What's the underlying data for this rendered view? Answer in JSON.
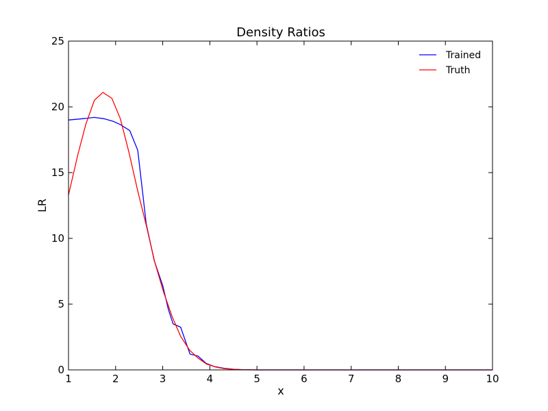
{
  "chart_data": {
    "type": "line",
    "title": "Density Ratios",
    "xlabel": "x",
    "ylabel": "LR",
    "xlim": [
      1,
      10
    ],
    "ylim": [
      0,
      25
    ],
    "xticks": [
      "1",
      "2",
      "3",
      "4",
      "5",
      "6",
      "7",
      "8",
      "9",
      "10"
    ],
    "yticks": [
      "0",
      "5",
      "10",
      "15",
      "20",
      "25"
    ],
    "grid": false,
    "legend_position": "top-right",
    "series": [
      {
        "name": "Trained",
        "color": "#0000ff",
        "x": [
          1.0,
          1.3,
          1.55,
          1.75,
          1.95,
          2.1,
          2.3,
          2.47,
          2.65,
          2.82,
          3.0,
          3.12,
          3.22,
          3.38,
          3.58,
          3.75,
          3.92,
          4.1,
          4.3,
          4.5,
          4.7,
          5.0,
          6.0,
          7.0,
          8.0,
          9.0,
          10.0
        ],
        "y": [
          19.0,
          19.1,
          19.2,
          19.1,
          18.9,
          18.65,
          18.2,
          16.7,
          11.1,
          8.3,
          6.4,
          4.6,
          3.5,
          3.25,
          1.2,
          1.05,
          0.5,
          0.25,
          0.12,
          0.05,
          0.02,
          0.0,
          0.0,
          0.0,
          0.0,
          0.0,
          0.0
        ]
      },
      {
        "name": "Truth",
        "color": "#ff0000",
        "x": [
          1.0,
          1.2,
          1.37,
          1.55,
          1.73,
          1.92,
          2.1,
          2.28,
          2.47,
          2.65,
          2.83,
          3.02,
          3.2,
          3.38,
          3.57,
          3.75,
          3.93,
          4.12,
          4.3,
          4.5,
          4.7,
          5.0,
          6.0,
          7.0,
          8.0,
          9.0,
          10.0
        ],
        "y": [
          13.3,
          16.4,
          18.7,
          20.5,
          21.1,
          20.65,
          19.1,
          16.6,
          13.6,
          11.0,
          8.2,
          5.9,
          4.05,
          2.55,
          1.5,
          0.9,
          0.45,
          0.22,
          0.1,
          0.04,
          0.01,
          0.0,
          0.0,
          0.0,
          0.0,
          0.0,
          0.0
        ]
      }
    ]
  }
}
